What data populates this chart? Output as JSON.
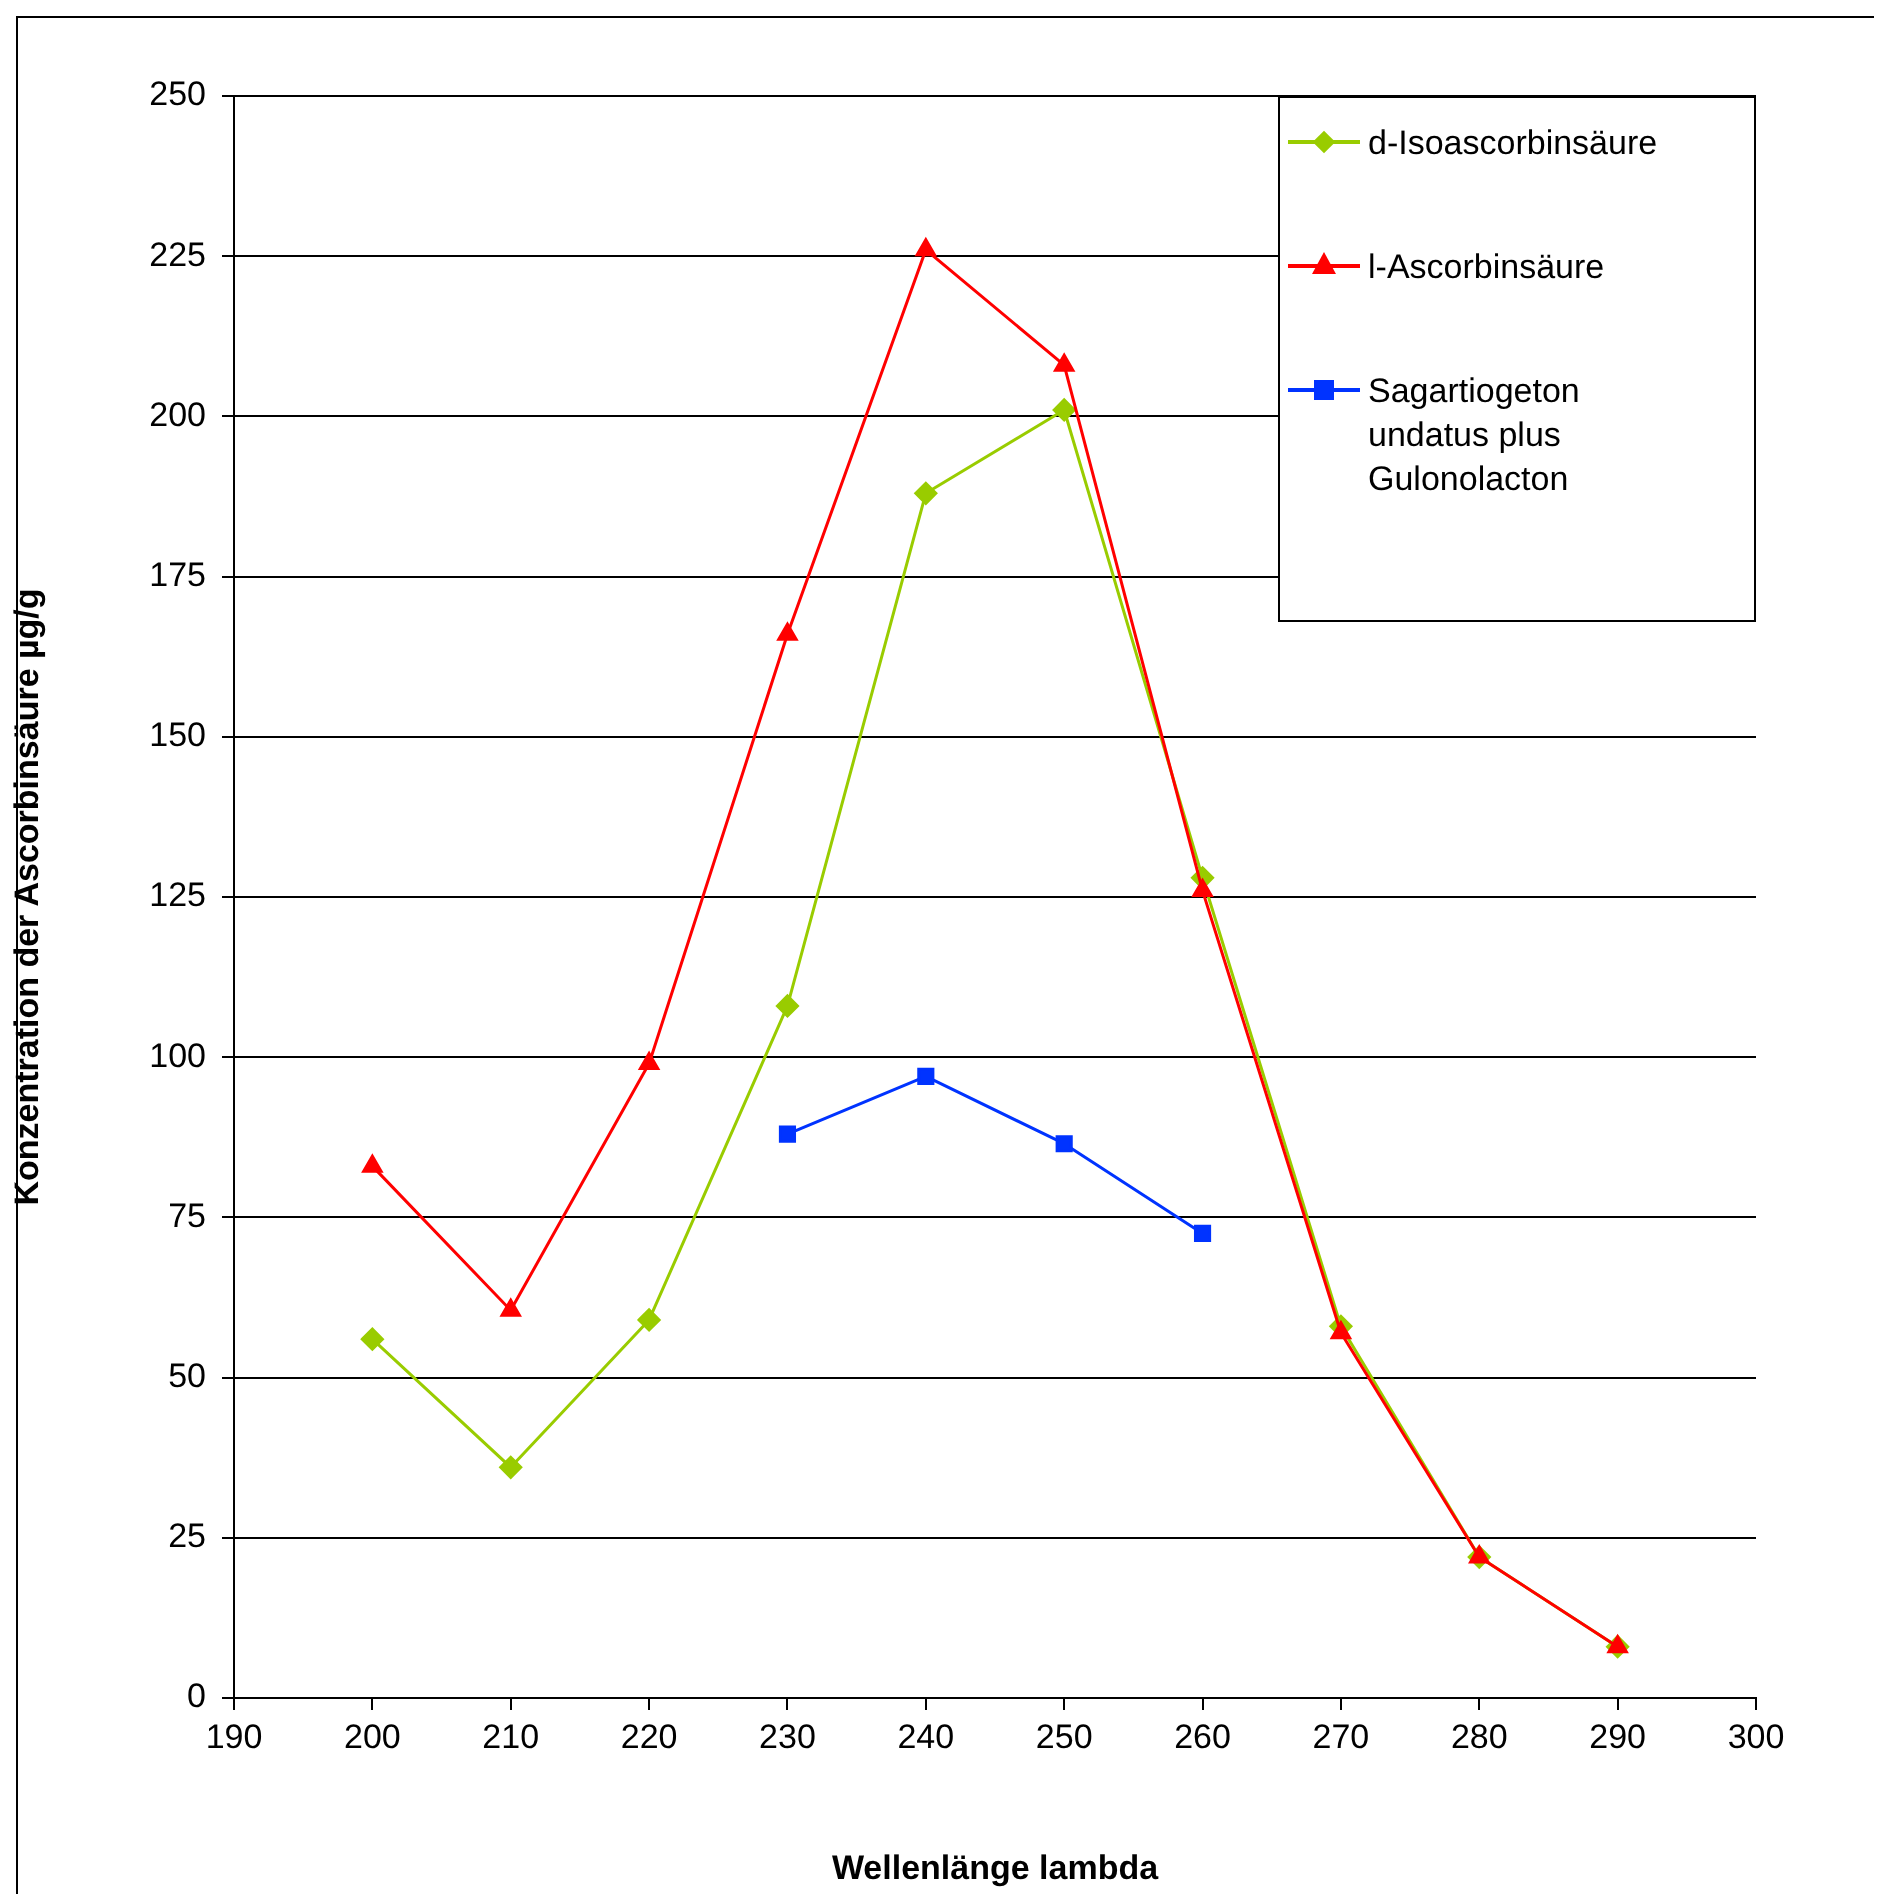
{
  "chart_data": {
    "type": "line",
    "xlabel": "Wellenlänge lambda",
    "ylabel": "Konzentration der Ascorbinsäure µg/g",
    "xlim": [
      190,
      300
    ],
    "xticks": [
      190,
      200,
      210,
      220,
      230,
      240,
      250,
      260,
      270,
      280,
      290,
      300
    ],
    "ylim": [
      0,
      250
    ],
    "yticks": [
      0,
      25,
      50,
      75,
      100,
      125,
      150,
      175,
      200,
      225,
      250
    ],
    "grid": "y",
    "legend": "top right",
    "series": [
      {
        "name": "d-Isoascorbinsäure",
        "color": "#99cc00",
        "marker": "diamond",
        "x": [
          200,
          210,
          220,
          230,
          240,
          250,
          260,
          270,
          280,
          290
        ],
        "values": [
          56,
          36,
          59,
          108,
          188,
          201,
          128,
          58,
          22,
          8
        ]
      },
      {
        "name": "l-Ascorbinsäure",
        "color": "#ff0000",
        "marker": "triangle",
        "x": [
          200,
          210,
          220,
          230,
          240,
          250,
          260,
          270,
          280,
          290
        ],
        "values": [
          83,
          60.5,
          99,
          166,
          226,
          208,
          126,
          57,
          22,
          8
        ]
      },
      {
        "name": "Sagartiogeton undatus plus Gulonolacton",
        "color": "#0033ff",
        "marker": "square",
        "x": [
          230,
          240,
          250,
          260
        ],
        "values": [
          88,
          97,
          86.5,
          72.5
        ]
      }
    ]
  }
}
